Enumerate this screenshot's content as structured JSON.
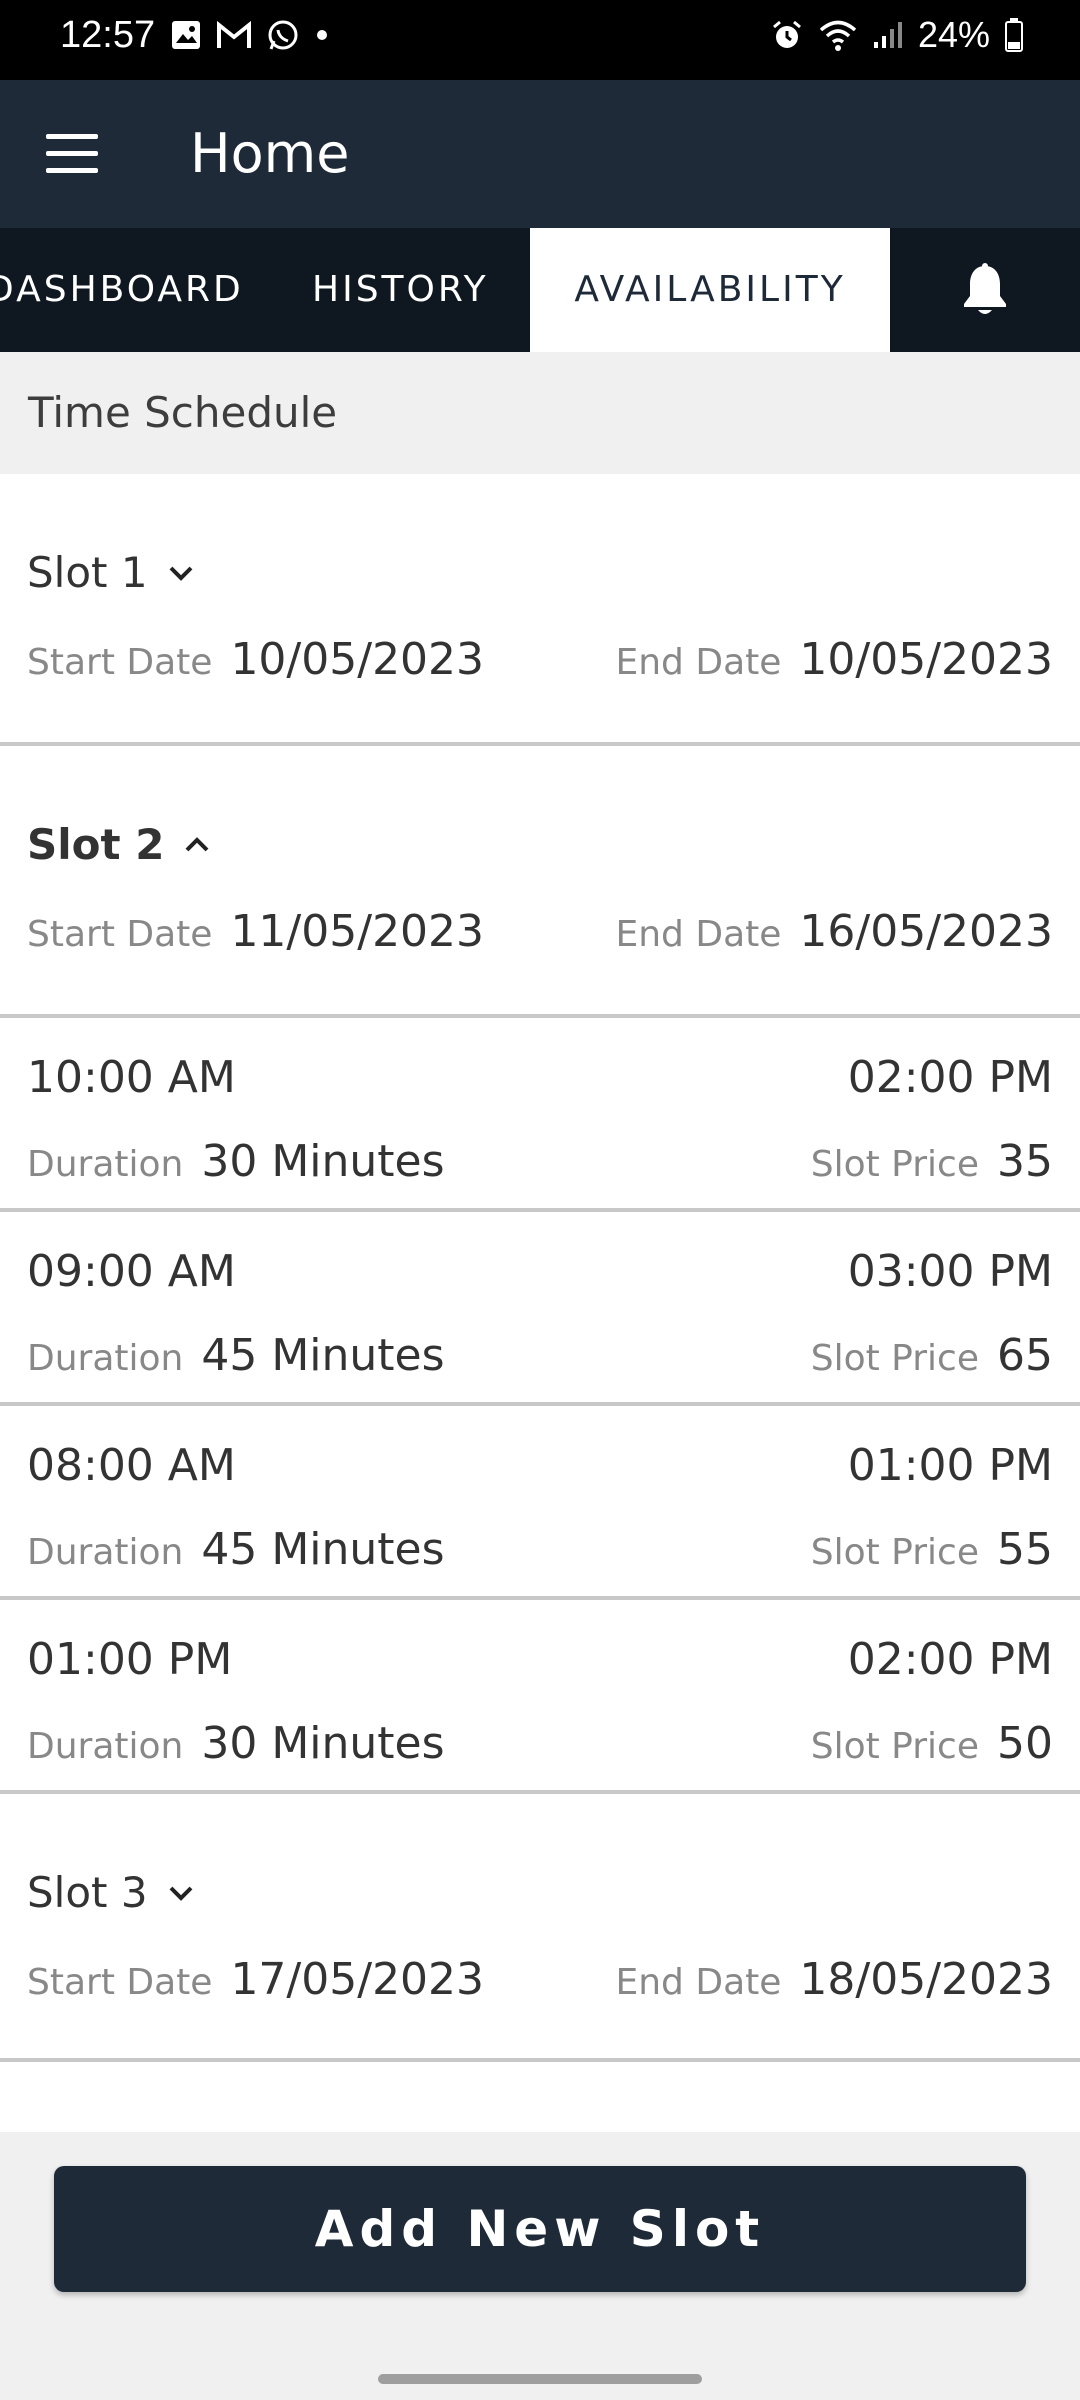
{
  "status_bar": {
    "time": "12:57",
    "battery": "24%",
    "left_icons": [
      "gallery-icon",
      "gmail-icon",
      "whatsapp-icon",
      "dot-icon"
    ],
    "right_icons": [
      "alarm-icon",
      "wifi-icon",
      "signal-icon",
      "battery-icon"
    ]
  },
  "app_bar": {
    "title": "Home",
    "menu_icon": "hamburger-menu-icon"
  },
  "tabs": [
    {
      "label": "DASHBOARD",
      "active": false
    },
    {
      "label": "HISTORY",
      "active": false
    },
    {
      "label": "AVAILABILITY",
      "active": true
    }
  ],
  "notification_icon": "bell-icon",
  "section_title": "Time Schedule",
  "labels": {
    "start_date": "Start Date",
    "end_date": "End Date",
    "duration": "Duration",
    "slot_price": "Slot Price"
  },
  "slots": [
    {
      "title": "Slot 1",
      "expanded": false,
      "start_date": "10/05/2023",
      "end_date": "10/05/2023"
    },
    {
      "title": "Slot 2",
      "expanded": true,
      "start_date": "11/05/2023",
      "end_date": "16/05/2023",
      "times": [
        {
          "start": "10:00 AM",
          "end": "02:00 PM",
          "duration": "30 Minutes",
          "price": "35"
        },
        {
          "start": "09:00 AM",
          "end": "03:00 PM",
          "duration": "45 Minutes",
          "price": "65"
        },
        {
          "start": "08:00 AM",
          "end": "01:00 PM",
          "duration": "45 Minutes",
          "price": "55"
        },
        {
          "start": "01:00 PM",
          "end": "02:00 PM",
          "duration": "30 Minutes",
          "price": "50"
        }
      ]
    },
    {
      "title": "Slot 3",
      "expanded": false,
      "start_date": "17/05/2023",
      "end_date": "18/05/2023"
    }
  ],
  "add_button_label": "Add New Slot",
  "colors": {
    "app_bar": "#1e2a38",
    "tab_bar": "#0f1820",
    "active_tab_text": "#1e2a38",
    "section_bg": "#f0f0f0",
    "label_gray": "#888888"
  }
}
